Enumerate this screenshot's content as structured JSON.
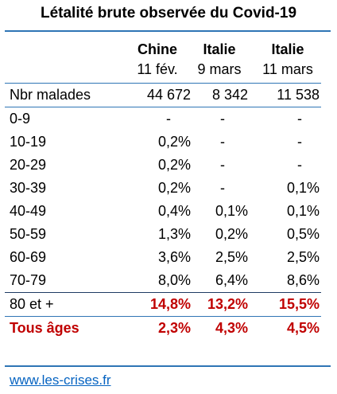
{
  "title": "Létalité brute observée du Covid-19",
  "columns": [
    {
      "country": "Chine",
      "date": "11 fév."
    },
    {
      "country": "Italie",
      "date": "9 mars"
    },
    {
      "country": "Italie",
      "date": "11 mars"
    }
  ],
  "rows": [
    {
      "label": "Nbr malades",
      "values": [
        "44 672",
        "8 342",
        "11 538"
      ]
    },
    {
      "label": "0-9",
      "values": [
        "-",
        "-",
        "-"
      ]
    },
    {
      "label": "10-19",
      "values": [
        "0,2%",
        "-",
        "-"
      ]
    },
    {
      "label": "20-29",
      "values": [
        "0,2%",
        "-",
        "-"
      ]
    },
    {
      "label": "30-39",
      "values": [
        "0,2%",
        "-",
        "0,1%"
      ]
    },
    {
      "label": "40-49",
      "values": [
        "0,4%",
        "0,1%",
        "0,1%"
      ]
    },
    {
      "label": "50-59",
      "values": [
        "1,3%",
        "0,2%",
        "0,5%"
      ]
    },
    {
      "label": "60-69",
      "values": [
        "3,6%",
        "2,5%",
        "2,5%"
      ]
    },
    {
      "label": "70-79",
      "values": [
        "8,0%",
        "6,4%",
        "8,6%"
      ]
    },
    {
      "label": "80 et +",
      "values": [
        "14,8%",
        "13,2%",
        "15,5%"
      ]
    },
    {
      "label": "Tous âges",
      "values": [
        "2,3%",
        "4,3%",
        "4,5%"
      ]
    }
  ],
  "footer": {
    "link_text": "www.les-crises.fr"
  },
  "colors": {
    "accent_rule": "#2f75b5",
    "highlight_red": "#c00000",
    "link": "#0563c1"
  }
}
